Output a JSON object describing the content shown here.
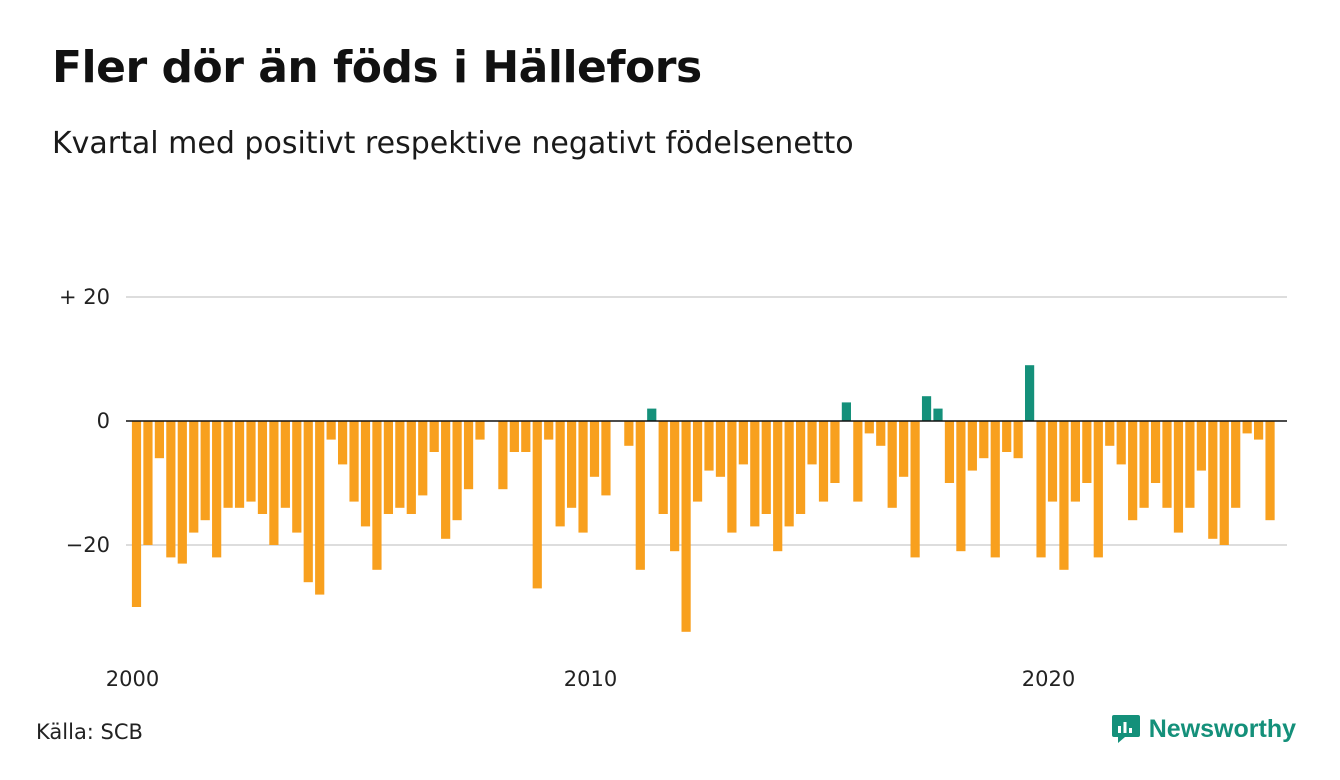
{
  "title": "Fler dör än föds i Hällefors",
  "subtitle": "Kvartal med positivt respektive negativt födelsenetto",
  "source": "Källa: SCB",
  "brand": "Newsworthy",
  "logo_icon": "newsworthy-chart-bubble-icon",
  "colors": {
    "negative": "#f8a01e",
    "positive": "#14907a",
    "grid": "#dddddd",
    "zero_line": "#111111",
    "brand": "#14907a"
  },
  "chart_data": {
    "type": "bar",
    "title": "Fler dör än föds i Hällefors",
    "subtitle": "Kvartal med positivt respektive negativt födelsenetto",
    "x_start": "2000 Q1",
    "frequency": "quarterly",
    "values": [
      -30,
      -20,
      -6,
      -22,
      -23,
      -18,
      -16,
      -22,
      -14,
      -14,
      -13,
      -15,
      -20,
      -14,
      -18,
      -26,
      -28,
      -3,
      -7,
      -13,
      -17,
      -24,
      -15,
      -14,
      -15,
      -12,
      -5,
      -19,
      -16,
      -11,
      -3,
      0,
      -11,
      -5,
      -5,
      -27,
      -3,
      -17,
      -14,
      -18,
      -9,
      -12,
      0,
      -4,
      -24,
      2,
      -15,
      -21,
      -34,
      -13,
      -8,
      -9,
      -18,
      -7,
      -17,
      -15,
      -21,
      -17,
      -15,
      -7,
      -13,
      -10,
      3,
      -13,
      -2,
      -4,
      -14,
      -9,
      -22,
      4,
      2,
      -10,
      -21,
      -8,
      -6,
      -22,
      -5,
      -6,
      9,
      -22,
      -13,
      -24,
      -13,
      -10,
      -22,
      -4,
      -7,
      -16,
      -14,
      -10,
      -14,
      -18,
      -14,
      -8,
      -19,
      -20,
      -14,
      -2,
      -3,
      -16
    ],
    "y_ticks": [
      20,
      0,
      -20
    ],
    "y_tick_labels": [
      "+ 20",
      "0",
      "−20"
    ],
    "ylim": [
      -36,
      20
    ],
    "x_ticks": [
      2000,
      2010,
      2020
    ],
    "x_tick_labels": [
      "2000",
      "2010",
      "2020"
    ],
    "grid": true,
    "legend": "none"
  }
}
